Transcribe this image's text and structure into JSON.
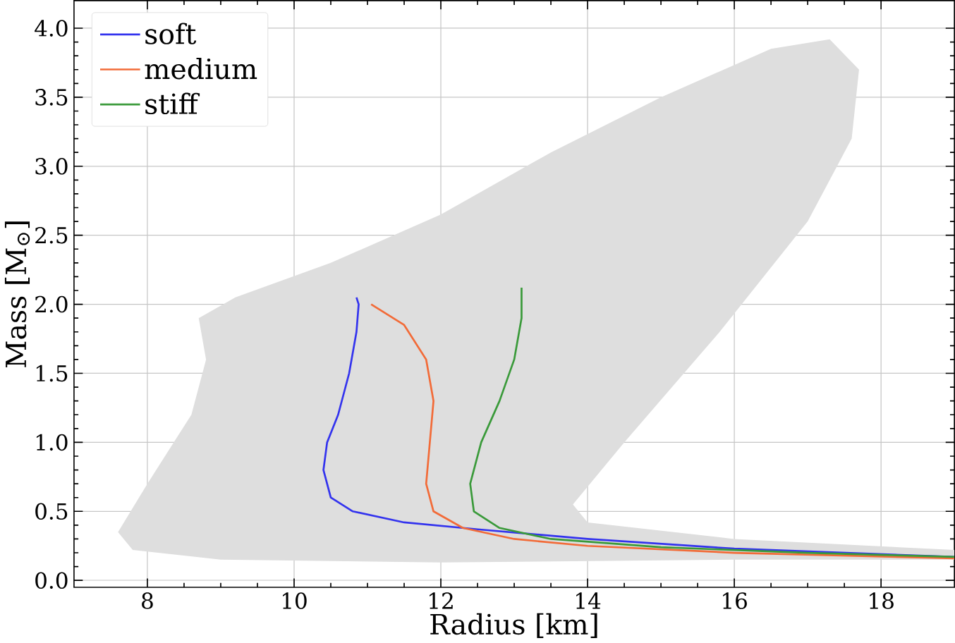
{
  "chart_data": {
    "type": "line",
    "xlabel": "Radius [km]",
    "ylabel": "Mass [M$_{⊙}$]",
    "xlim": [
      7,
      19
    ],
    "ylim": [
      -0.05,
      4.2
    ],
    "xticks": [
      8,
      10,
      12,
      14,
      16,
      18
    ],
    "yticks": [
      {
        "value": 0,
        "label": "0.0"
      },
      0.5,
      {
        "value": 1,
        "label": "1.0"
      },
      1.5,
      {
        "value": 2,
        "label": "2.0"
      },
      2.5,
      {
        "value": 3,
        "label": "3.0"
      },
      3.5,
      {
        "value": 4,
        "label": "4.0"
      }
    ],
    "grid": true,
    "legend": "top left",
    "series": [
      {
        "type": "area",
        "color": "#dedede",
        "x": [
          7.6,
          8.0,
          8.6,
          8.8,
          8.7,
          9.2,
          10.5,
          12,
          13.5,
          15,
          16.5,
          17.3,
          17.7,
          17.6,
          17,
          15.8,
          14.5,
          13.8,
          14,
          16,
          19,
          19,
          16,
          12,
          9,
          7.8
        ],
        "values": [
          0.35,
          0.7,
          1.2,
          1.6,
          1.9,
          2.05,
          2.3,
          2.65,
          3.1,
          3.5,
          3.85,
          3.92,
          3.7,
          3.2,
          2.6,
          1.8,
          1.0,
          0.55,
          0.42,
          0.3,
          0.22,
          0.15,
          0.15,
          0.13,
          0.15,
          0.22
        ]
      },
      {
        "name": "soft",
        "color": "#3333ee",
        "x": [
          10.85,
          10.88,
          10.85,
          10.75,
          10.6,
          10.45,
          10.4,
          10.5,
          10.8,
          11.5,
          12.5,
          14,
          16,
          19
        ],
        "values": [
          2.05,
          2.0,
          1.8,
          1.5,
          1.2,
          1.0,
          0.8,
          0.6,
          0.5,
          0.42,
          0.37,
          0.3,
          0.23,
          0.17
        ]
      },
      {
        "name": "medium",
        "color": "#f26b38",
        "x": [
          11.05,
          11.5,
          11.8,
          11.9,
          11.85,
          11.8,
          11.9,
          12.3,
          13,
          14,
          16,
          19
        ],
        "values": [
          2.0,
          1.85,
          1.6,
          1.3,
          1.0,
          0.7,
          0.5,
          0.38,
          0.3,
          0.25,
          0.2,
          0.16
        ]
      },
      {
        "name": "stiff",
        "color": "#3a9a3a",
        "x": [
          13.1,
          13.1,
          13.0,
          12.8,
          12.55,
          12.4,
          12.45,
          12.8,
          13.5,
          15,
          17,
          19
        ],
        "values": [
          2.12,
          1.9,
          1.6,
          1.3,
          1.0,
          0.7,
          0.5,
          0.38,
          0.3,
          0.24,
          0.2,
          0.17
        ]
      }
    ]
  }
}
